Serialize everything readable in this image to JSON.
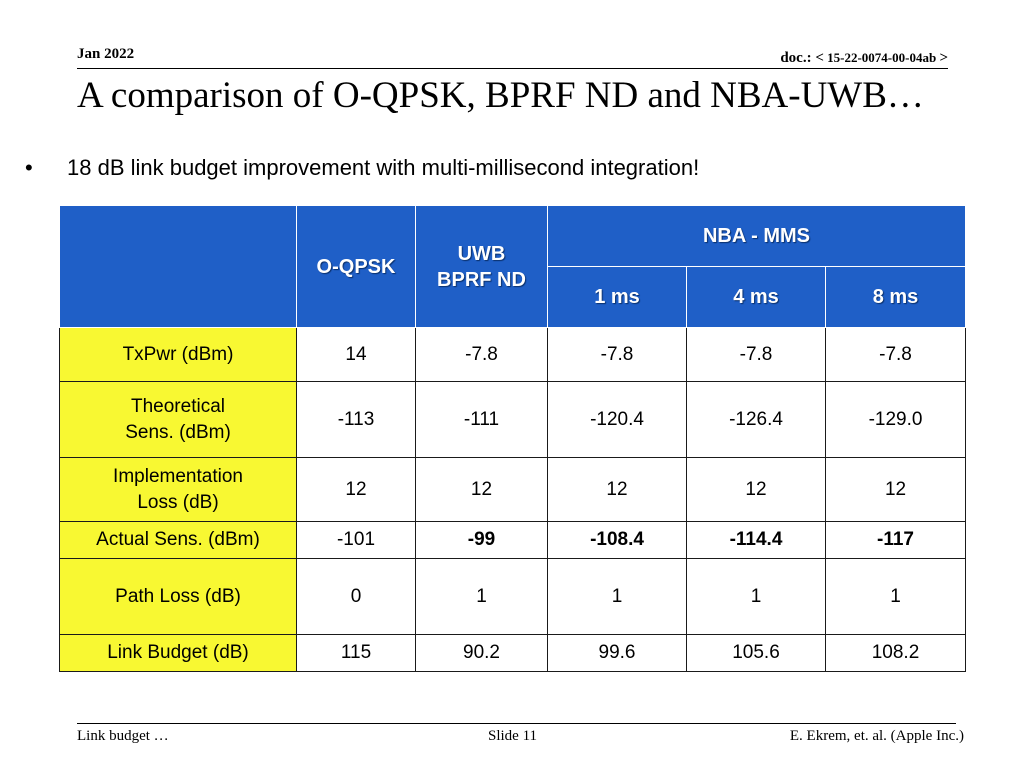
{
  "header": {
    "date": "Jan 2022",
    "doc_prefix": "doc.: <",
    "doc_number": " 15-22-0074-00-04ab ",
    "doc_suffix": ">"
  },
  "title": "A comparison of O-QPSK, BPRF ND and NBA-UWB…",
  "bullet": {
    "marker": "•",
    "text": "18 dB link budget improvement with multi-millisecond integration!"
  },
  "table": {
    "col_headers": {
      "oqpsk": "O-QPSK",
      "uwb_line1": "UWB",
      "uwb_line2": "BPRF ND",
      "nba": "NBA - MMS",
      "ms1": "1 ms",
      "ms4": "4 ms",
      "ms8": "8 ms"
    },
    "rows": [
      {
        "label": "TxPwr (dBm)",
        "label_line2": "",
        "values": [
          "14",
          "-7.8",
          "-7.8",
          "-7.8",
          "-7.8"
        ]
      },
      {
        "label": "Theoretical",
        "label_line2": "Sens. (dBm)",
        "values": [
          "-113",
          "-111",
          "-120.4",
          "-126.4",
          "-129.0"
        ]
      },
      {
        "label": "Implementation",
        "label_line2": "Loss (dB)",
        "values": [
          "12",
          "12",
          "12",
          "12",
          "12"
        ]
      },
      {
        "label": "Actual Sens. (dBm)",
        "label_line2": "",
        "values": [
          "-101",
          "-99",
          "-108.4",
          "-114.4",
          "-117"
        ]
      },
      {
        "label": "Path Loss (dB)",
        "label_line2": "",
        "values": [
          "0",
          "1",
          "1",
          "1",
          "1"
        ]
      },
      {
        "label": "Link Budget (dB)",
        "label_line2": "",
        "values": [
          "115",
          "90.2",
          "99.6",
          "105.6",
          "108.2"
        ]
      }
    ]
  },
  "footer": {
    "left": "Link budget …",
    "center": "Slide 11",
    "right": "E. Ekrem, et. al. (Apple Inc.)"
  },
  "colors": {
    "header_blue": "#1f5fc7",
    "label_yellow": "#f8f832"
  }
}
